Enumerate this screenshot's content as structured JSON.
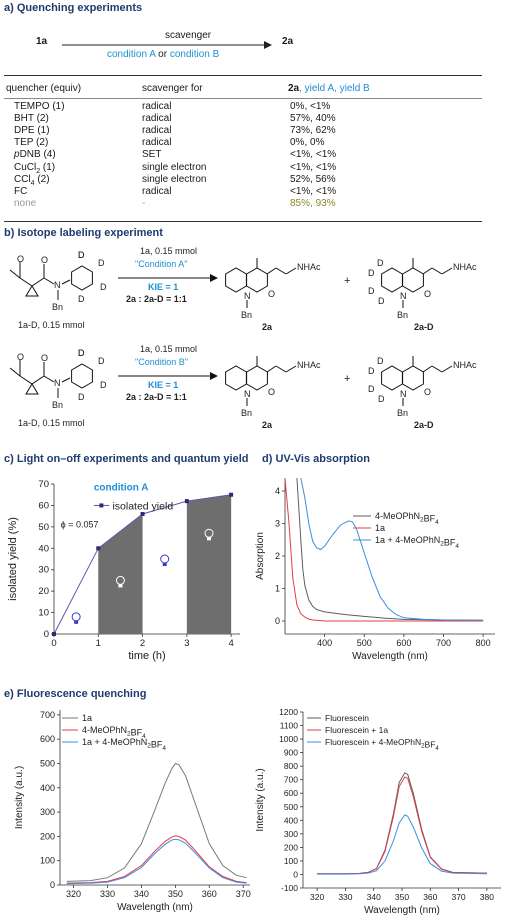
{
  "sections": {
    "a": {
      "letter": "a)",
      "title": "Quenching experiments"
    },
    "b": {
      "letter": "b)",
      "title": "Isotope labeling experiment"
    },
    "c": {
      "letter": "c)",
      "title": "Light on–off experiments and quantum yield"
    },
    "d": {
      "letter": "d)",
      "title": "UV-Vis absorption"
    },
    "e": {
      "letter": "e)",
      "title": "Fluorescence quenching"
    }
  },
  "quench_scheme": {
    "reactant": "1a",
    "product": "2a",
    "arrow_top": "scavenger",
    "cond_a": "condition A",
    "cond_or": " or ",
    "cond_b": "condition B"
  },
  "quench_table": {
    "headers": [
      "quencher (equiv)",
      "scavenger for",
      "2a",
      ", yield A, yield B"
    ],
    "rows": [
      {
        "quencher": "TEMPO (1)",
        "for": "radical",
        "yield": "0%, <1%"
      },
      {
        "quencher": "BHT (2)",
        "for": "radical",
        "yield": "57%, 40%"
      },
      {
        "quencher": "DPE (1)",
        "for": "radical",
        "yield": "73%, 62%"
      },
      {
        "quencher": "TEP (2)",
        "for": "radical",
        "yield": "0%, 0%"
      },
      {
        "quencher": "pDNB (4)",
        "for": "SET",
        "yield": "<1%, <1%"
      },
      {
        "quencher": "CuCl2 (1)",
        "for": "single electron",
        "yield": "<1%, <1%"
      },
      {
        "quencher": "CCl4 (2)",
        "for": "single electron",
        "yield": "52%, 56%"
      },
      {
        "quencher": "FC",
        "for": "radical",
        "yield": "<1%, <1%"
      },
      {
        "quencher": "none",
        "for": "-",
        "yield": "85%, 93%"
      }
    ]
  },
  "isotope": [
    {
      "reagent": "1a, 0.15 mmol",
      "cond": "\"Condition A\"",
      "kie": "KIE = 1",
      "ratio": "2a : 2a-D = 1:1",
      "sm_label": "1a-D, 0.15 mmol",
      "p1": "2a",
      "p2": "2a-D"
    },
    {
      "reagent": "1a, 0.15 mmol",
      "cond": "\"Condition B\"",
      "kie": "KIE = 1",
      "ratio": "2a : 2a-D = 1:1",
      "sm_label": "1a-D, 0.15 mmol",
      "p1": "2a",
      "p2": "2a-D"
    }
  ],
  "struct_labels": {
    "d": "D",
    "n": "N",
    "o": "O",
    "bn": "Bn",
    "nhac": "NHAc",
    "plus": "+"
  },
  "chart_data": [
    {
      "type": "line",
      "panel": "c",
      "annotation": "condition A",
      "phi": "ϕ = 0.057",
      "xlabel": "time (h)",
      "ylabel": "isolated yield (%)",
      "xlim": [
        0,
        4.2
      ],
      "ylim": [
        0,
        70
      ],
      "xticks": [
        0,
        1,
        2,
        3,
        4
      ],
      "yticks": [
        0,
        10,
        20,
        30,
        40,
        50,
        60,
        70
      ],
      "series": [
        {
          "name": "isolated yield",
          "x": [
            0,
            1,
            2,
            3,
            4
          ],
          "y": [
            0,
            40,
            56,
            62,
            65
          ]
        }
      ],
      "dark_intervals": [
        [
          1,
          2
        ],
        [
          3,
          4
        ]
      ],
      "bulb_positions": [
        [
          0.5,
          8
        ],
        [
          1.5,
          25
        ],
        [
          2.5,
          35
        ],
        [
          3.5,
          47
        ]
      ],
      "colors": {
        "line": "#5a5aa8",
        "marker": "#2b2b7a",
        "dark": "#6e6e6e",
        "text": "#1d8fd6"
      }
    },
    {
      "type": "line",
      "panel": "d",
      "xlabel": "Wavelength (nm)",
      "ylabel": "Absorption",
      "xlim": [
        300,
        830
      ],
      "ylim": [
        -0.4,
        4.4
      ],
      "xticks": [
        400,
        500,
        600,
        700,
        800
      ],
      "yticks": [
        0,
        1,
        2,
        3,
        4
      ],
      "series": [
        {
          "name": "4-MeOPhN2BF4",
          "color": "#5e5e5e",
          "x": [
            330,
            340,
            345,
            350,
            360,
            370,
            380,
            400,
            450,
            500,
            550,
            600,
            700,
            800
          ],
          "y": [
            4.4,
            2.5,
            1.6,
            1.1,
            0.65,
            0.45,
            0.35,
            0.28,
            0.2,
            0.14,
            0.09,
            0.05,
            0.03,
            0.02
          ]
        },
        {
          "name": "1a",
          "color": "#e0404a",
          "x": [
            300,
            310,
            320,
            330,
            340,
            350,
            360,
            370,
            380,
            400,
            500,
            800
          ],
          "y": [
            4.4,
            3.0,
            1.3,
            0.5,
            0.22,
            0.12,
            0.06,
            0.03,
            0.02,
            0.0,
            0.0,
            0.0
          ]
        },
        {
          "name": "1a + 4-MeOPhN2BF4",
          "color": "#3b8ee0",
          "x": [
            340,
            350,
            360,
            370,
            380,
            390,
            400,
            420,
            440,
            460,
            470,
            480,
            500,
            520,
            540,
            560,
            580,
            600,
            650,
            700,
            800
          ],
          "y": [
            4.4,
            3.8,
            3.0,
            2.45,
            2.25,
            2.2,
            2.3,
            2.65,
            2.95,
            3.08,
            3.05,
            2.85,
            2.1,
            1.35,
            0.75,
            0.4,
            0.2,
            0.1,
            0.05,
            0.03,
            0.02
          ]
        }
      ],
      "colors": {
        "axis": "#333333"
      }
    },
    {
      "type": "line",
      "panel": "e-left",
      "xlabel": "Wavelength (nm)",
      "ylabel": "Intensity (a.u.)",
      "xlim": [
        316,
        372
      ],
      "ylim": [
        0,
        720
      ],
      "xticks": [
        320,
        330,
        340,
        350,
        360,
        370
      ],
      "yticks": [
        0,
        100,
        200,
        300,
        400,
        500,
        600,
        700
      ],
      "series": [
        {
          "name": "1a",
          "color": "#7a7a7a",
          "x": [
            318,
            325,
            330,
            335,
            340,
            344,
            347,
            349,
            350,
            351,
            353,
            356,
            360,
            364,
            368,
            371
          ],
          "y": [
            15,
            18,
            30,
            70,
            170,
            310,
            420,
            480,
            500,
            495,
            450,
            330,
            170,
            80,
            40,
            30
          ]
        },
        {
          "name": "4-MeOPhN2BF4",
          "color": "#e0404a",
          "x": [
            318,
            325,
            330,
            335,
            340,
            344,
            347,
            349,
            350,
            351,
            353,
            356,
            360,
            364,
            368,
            371
          ],
          "y": [
            8,
            10,
            15,
            35,
            80,
            140,
            180,
            198,
            202,
            200,
            185,
            140,
            75,
            35,
            15,
            10
          ]
        },
        {
          "name": "1a + 4-MeOPhN2BF4",
          "color": "#3b8ee0",
          "x": [
            318,
            325,
            330,
            335,
            340,
            344,
            347,
            349,
            350,
            351,
            353,
            356,
            360,
            364,
            368,
            371
          ],
          "y": [
            5,
            8,
            12,
            30,
            72,
            130,
            168,
            185,
            188,
            186,
            172,
            130,
            70,
            30,
            12,
            8
          ]
        }
      ]
    },
    {
      "type": "line",
      "panel": "e-right",
      "xlabel": "Wavelength (nm)",
      "ylabel": "Intensity (a.u.)",
      "xlim": [
        315,
        385
      ],
      "ylim": [
        -100,
        1200
      ],
      "xticks": [
        320,
        330,
        340,
        350,
        360,
        370,
        380
      ],
      "yticks": [
        -100,
        0,
        100,
        200,
        300,
        400,
        500,
        600,
        700,
        800,
        900,
        1000,
        1100,
        1200
      ],
      "series": [
        {
          "name": "Fluorescein",
          "color": "#5e5e5e",
          "x": [
            320,
            330,
            335,
            338,
            341,
            344,
            347,
            349,
            351,
            352,
            354,
            357,
            360,
            364,
            368,
            380
          ],
          "y": [
            5,
            5,
            8,
            15,
            45,
            180,
            450,
            680,
            750,
            740,
            600,
            330,
            130,
            40,
            15,
            10
          ]
        },
        {
          "name": "Fluorescein + 1a",
          "color": "#e0404a",
          "x": [
            320,
            330,
            335,
            338,
            341,
            344,
            347,
            349,
            351,
            352,
            354,
            357,
            360,
            364,
            368,
            380
          ],
          "y": [
            5,
            5,
            8,
            15,
            42,
            170,
            430,
            650,
            720,
            710,
            575,
            315,
            125,
            38,
            14,
            10
          ]
        },
        {
          "name": "Fluorescein + 4-MeOPhN2BF4",
          "color": "#3b8ee0",
          "x": [
            320,
            330,
            335,
            338,
            341,
            344,
            347,
            349,
            351,
            352,
            354,
            357,
            360,
            364,
            368,
            380
          ],
          "y": [
            3,
            3,
            5,
            10,
            28,
            100,
            250,
            380,
            440,
            430,
            350,
            195,
            80,
            25,
            10,
            5
          ]
        }
      ]
    }
  ]
}
